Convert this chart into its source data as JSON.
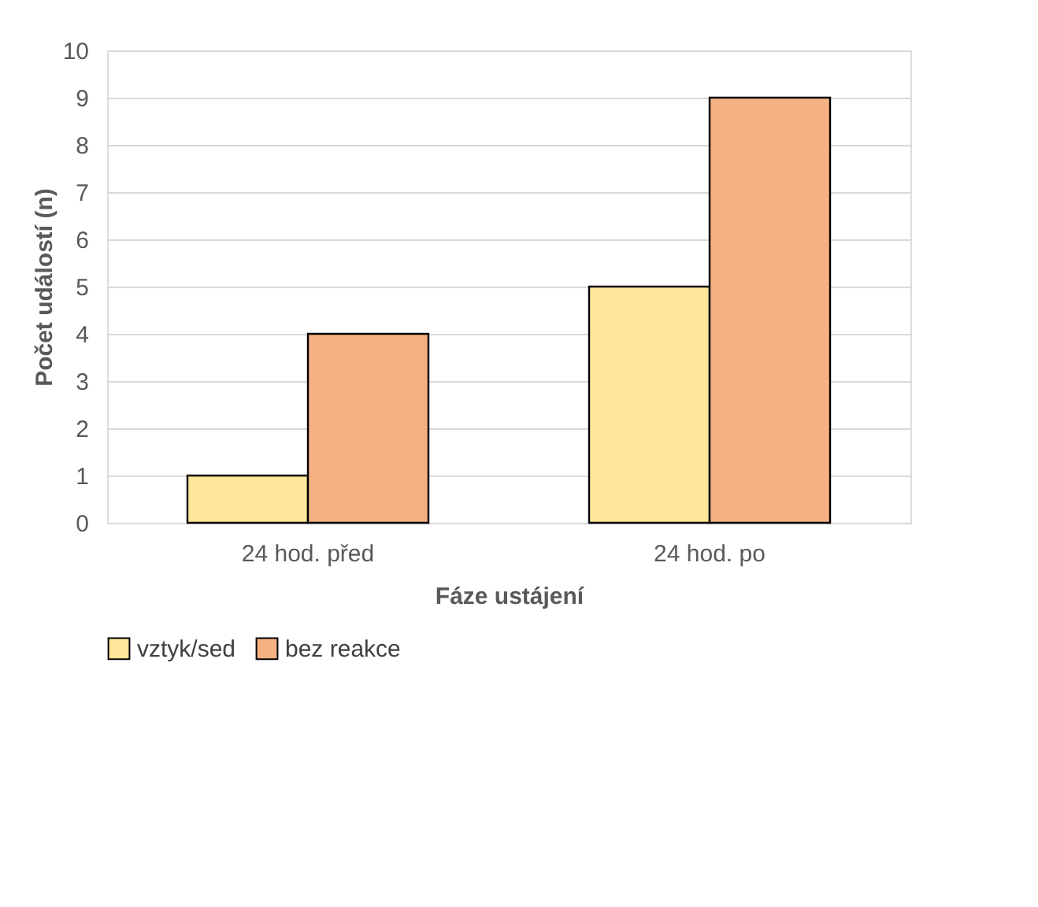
{
  "chart_data": {
    "type": "bar",
    "xlabel": "Fáze ustájení",
    "ylabel": "Počet událostí (n)",
    "categories": [
      "24 hod. před",
      "24 hod. po"
    ],
    "series": [
      {
        "name": "vztyk/sed",
        "color": "#ffe699",
        "values": [
          1,
          5
        ]
      },
      {
        "name": "bez reakce",
        "color": "#f4b183",
        "values": [
          4,
          9
        ]
      }
    ],
    "ylim": [
      0,
      10
    ],
    "yticks": [
      0,
      1,
      2,
      3,
      4,
      5,
      6,
      7,
      8,
      9,
      10
    ],
    "grid": "y",
    "legend": "bottom"
  }
}
